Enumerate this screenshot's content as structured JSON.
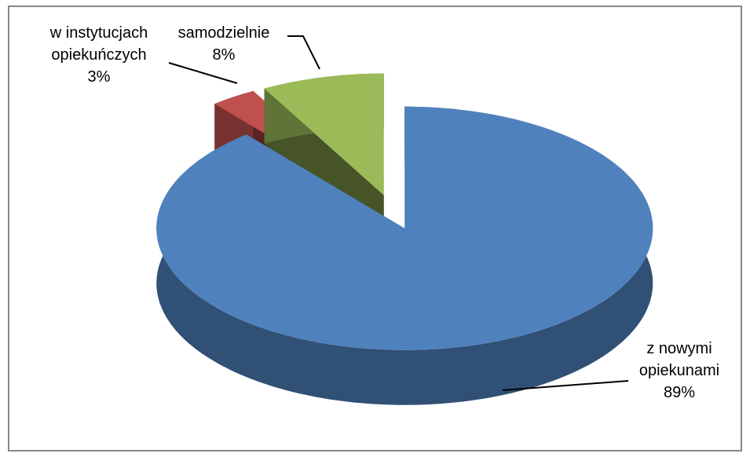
{
  "chart_data": {
    "type": "pie3d",
    "categories": [
      "z nowymi opiekunami",
      "w instytucjach opiekuńczych",
      "samodzielnie"
    ],
    "values": [
      89,
      3,
      8
    ],
    "value_labels": [
      "89%",
      "3%",
      "8%"
    ],
    "colors": [
      "#4f81bd",
      "#c0504d",
      "#9bbb59"
    ]
  }
}
